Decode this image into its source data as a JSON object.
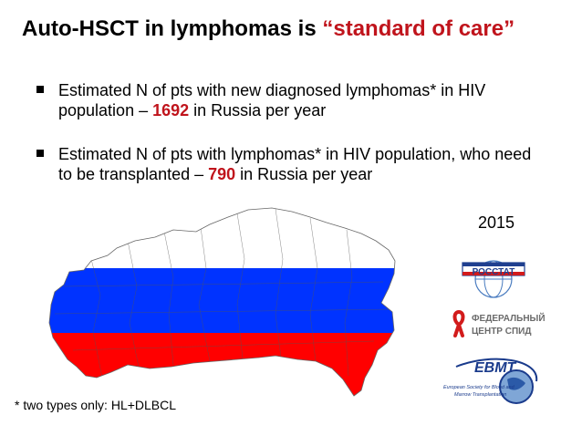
{
  "slide": {
    "title_part1": "Auto-HSCT in lymphomas is ",
    "title_highlight": "“standard of care”",
    "bullets": [
      {
        "text_before": "Estimated N of pts with new diagnosed lymphomas* in HIV population – ",
        "number": "1692",
        "text_after": " in Russia per year"
      },
      {
        "text_before": "Estimated N of pts with lymphomas* in HIV population, who need to be transplanted – ",
        "number": "790",
        "text_after": " in Russia per year"
      }
    ],
    "year": "2015",
    "footnote": "* two types only: HL+DLBCL"
  },
  "map": {
    "stripes": [
      "#ffffff",
      "#0033ff",
      "#ff0000"
    ]
  },
  "logos": {
    "rosstat": "РОССТАТ",
    "aids_center": [
      "ФЕДЕРАЛЬНЫЙ",
      "ЦЕНТР СПИД"
    ],
    "ebmt": {
      "name": "EBMT",
      "subtitle": [
        "European Society for Blood and",
        "Marrow Transplantation"
      ]
    }
  },
  "colors": {
    "accent": "#c0141c",
    "ebmt_blue": "#1a3b8c"
  }
}
